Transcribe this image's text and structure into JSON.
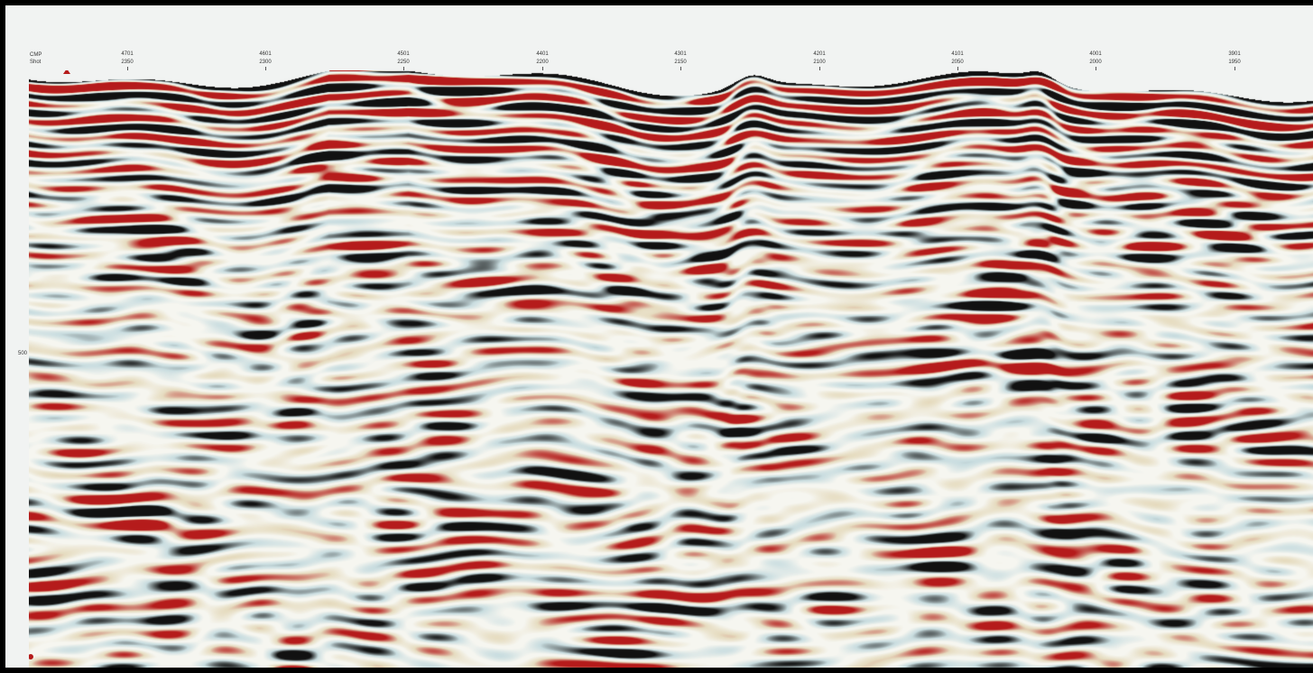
{
  "axis": {
    "header_cmp": "CMP",
    "header_shot": "Shot",
    "time_label": "500",
    "ticks": [
      {
        "cmp": "4701",
        "shot": "2350"
      },
      {
        "cmp": "4601",
        "shot": "2300"
      },
      {
        "cmp": "4501",
        "shot": "2250"
      },
      {
        "cmp": "4401",
        "shot": "2200"
      },
      {
        "cmp": "4301",
        "shot": "2150"
      },
      {
        "cmp": "4201",
        "shot": "2100"
      },
      {
        "cmp": "4101",
        "shot": "2050"
      },
      {
        "cmp": "4001",
        "shot": "2000"
      },
      {
        "cmp": "3901",
        "shot": "1950"
      }
    ]
  },
  "colors": {
    "positive": "#b51b1b",
    "negative": "#111111",
    "neutral_warm": "#e6dcc0",
    "neutral_cool": "#c9dde0",
    "frame": "#000000",
    "header_bg": "#f1f3f2"
  },
  "markers": {
    "top": "shot-marker-icon",
    "bottom": "marker-icon"
  }
}
